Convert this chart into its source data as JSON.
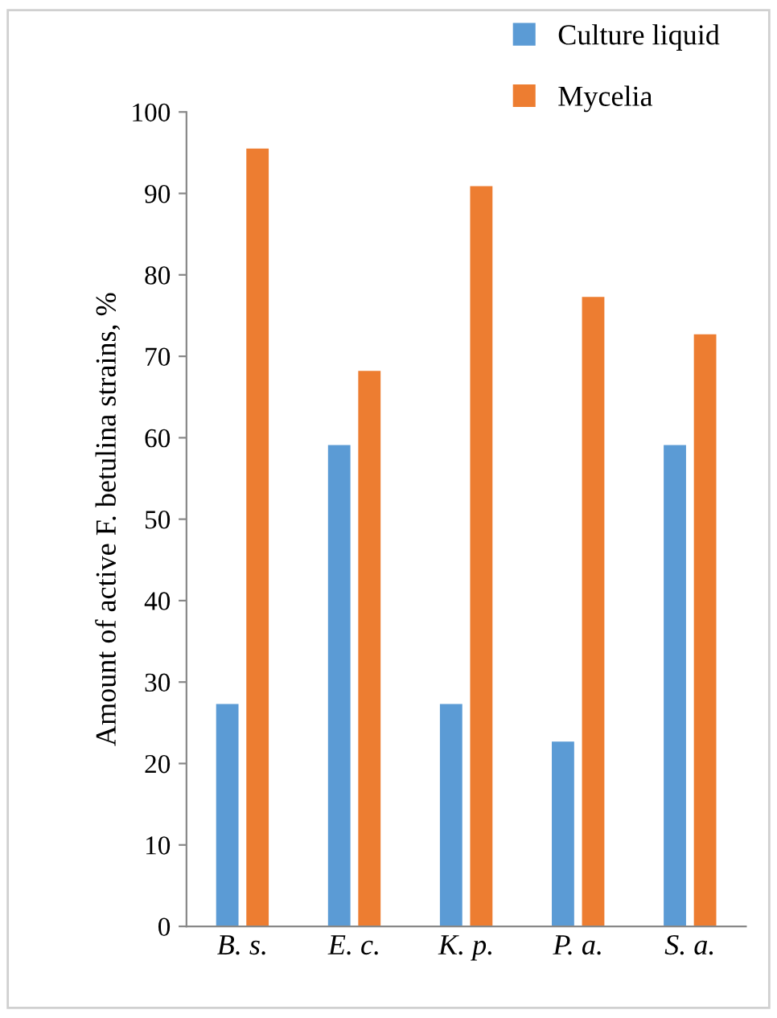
{
  "chart_data": {
    "type": "bar",
    "ylabel": "Amount of active F. betulina strains, %",
    "categories": [
      "B. s.",
      "E. c.",
      "K. p.",
      "P. a.",
      "S. a."
    ],
    "series": [
      {
        "name": "Culture liquid",
        "color": "#5b9bd5",
        "values": [
          27.3,
          59.1,
          27.3,
          22.7,
          59.1
        ]
      },
      {
        "name": "Mycelia",
        "color": "#ed7d31",
        "values": [
          95.5,
          68.2,
          90.9,
          77.3,
          72.7
        ]
      }
    ],
    "ylim": [
      0,
      100
    ],
    "yticks": [
      0,
      10,
      20,
      30,
      40,
      50,
      60,
      70,
      80,
      90,
      100
    ],
    "grid": false,
    "legend": "top right"
  }
}
